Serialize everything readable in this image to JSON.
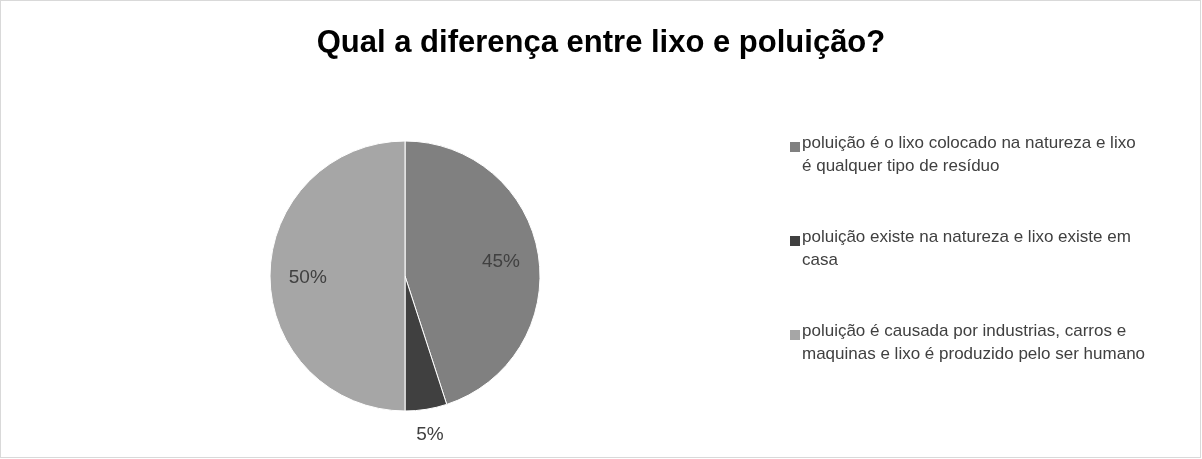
{
  "chart_data": {
    "type": "pie",
    "title": "Qual a diferença entre lixo e poluição?",
    "categories": [
      "poluição é o lixo colocado na natureza e lixo é qualquer tipo de resíduo",
      "poluição existe na natureza e lixo existe em casa",
      "poluição é causada por industrias, carros e maquinas e lixo é produzido pelo ser humano"
    ],
    "values": [
      45,
      5,
      50
    ],
    "colors": [
      "#808080",
      "#404040",
      "#a6a6a6"
    ],
    "value_labels": [
      "45%",
      "5%",
      "50%"
    ],
    "legend": "right"
  }
}
